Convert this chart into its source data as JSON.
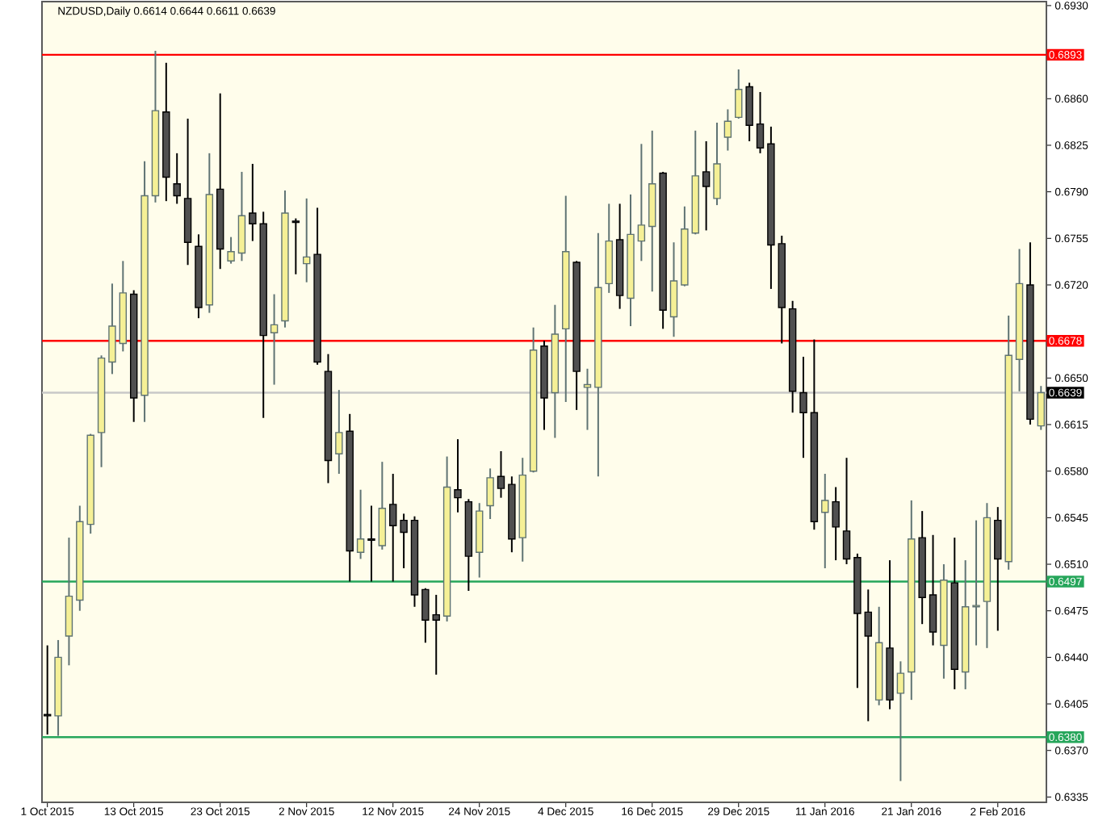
{
  "chart_data": {
    "type": "candlestick",
    "title": "NZDUSD,Daily 0.6614 0.6644 0.6611 0.6639",
    "categories": [
      "1 Oct 2015",
      null,
      null,
      null,
      null,
      null,
      null,
      null,
      "13 Oct 2015",
      null,
      null,
      null,
      null,
      null,
      null,
      null,
      "23 Oct 2015",
      null,
      null,
      null,
      null,
      null,
      null,
      null,
      "2 Nov 2015",
      null,
      null,
      null,
      null,
      null,
      null,
      null,
      "12 Nov 2015",
      null,
      null,
      null,
      null,
      null,
      null,
      null,
      "24 Nov 2015",
      null,
      null,
      null,
      null,
      null,
      null,
      null,
      "4 Dec 2015",
      null,
      null,
      null,
      null,
      null,
      null,
      null,
      "16 Dec 2015",
      null,
      null,
      null,
      null,
      null,
      null,
      null,
      "29 Dec 2015",
      null,
      null,
      null,
      null,
      null,
      null,
      null,
      "11 Jan 2016",
      null,
      null,
      null,
      null,
      null,
      null,
      null,
      "21 Jan 2016",
      null,
      null,
      null,
      null,
      null,
      null,
      null,
      "2 Feb 2016",
      null,
      null,
      null,
      null
    ],
    "ohlc": [
      [
        0.6397,
        0.6449,
        0.6382,
        0.6396
      ],
      [
        0.6396,
        0.6453,
        0.6381,
        0.644
      ],
      [
        0.6456,
        0.653,
        0.6434,
        0.6486
      ],
      [
        0.6483,
        0.6554,
        0.6475,
        0.6542
      ],
      [
        0.654,
        0.6608,
        0.6533,
        0.6607
      ],
      [
        0.6609,
        0.6667,
        0.6583,
        0.6665
      ],
      [
        0.6662,
        0.6721,
        0.6653,
        0.6689
      ],
      [
        0.6676,
        0.6738,
        0.667,
        0.6714
      ],
      [
        0.6713,
        0.6716,
        0.6617,
        0.6635
      ],
      [
        0.6637,
        0.6813,
        0.6617,
        0.6787
      ],
      [
        0.6787,
        0.6896,
        0.6782,
        0.6851
      ],
      [
        0.685,
        0.6887,
        0.6783,
        0.6801
      ],
      [
        0.6796,
        0.6819,
        0.6781,
        0.6787
      ],
      [
        0.6785,
        0.6845,
        0.6735,
        0.6752
      ],
      [
        0.6749,
        0.6758,
        0.6695,
        0.6703
      ],
      [
        0.6705,
        0.6819,
        0.6699,
        0.6788
      ],
      [
        0.6792,
        0.6864,
        0.6732,
        0.6747
      ],
      [
        0.6738,
        0.6756,
        0.6736,
        0.6745
      ],
      [
        0.6744,
        0.6805,
        0.6738,
        0.6772
      ],
      [
        0.6774,
        0.6811,
        0.6753,
        0.6766
      ],
      [
        0.6766,
        0.6775,
        0.662,
        0.6682
      ],
      [
        0.6684,
        0.6713,
        0.6645,
        0.669
      ],
      [
        0.6693,
        0.6791,
        0.6688,
        0.6774
      ],
      [
        0.6768,
        0.677,
        0.6728,
        0.6767
      ],
      [
        0.6736,
        0.6785,
        0.6722,
        0.6741
      ],
      [
        0.6743,
        0.6778,
        0.666,
        0.6662
      ],
      [
        0.6655,
        0.6668,
        0.6571,
        0.6588
      ],
      [
        0.6593,
        0.6641,
        0.6578,
        0.6609
      ],
      [
        0.661,
        0.6623,
        0.6497,
        0.652
      ],
      [
        0.6519,
        0.6566,
        0.6514,
        0.6529
      ],
      [
        0.6529,
        0.6554,
        0.6497,
        0.6528
      ],
      [
        0.6524,
        0.6587,
        0.6521,
        0.6552
      ],
      [
        0.6555,
        0.6578,
        0.6497,
        0.6539
      ],
      [
        0.6543,
        0.6548,
        0.6507,
        0.6534
      ],
      [
        0.6543,
        0.6546,
        0.6478,
        0.6487
      ],
      [
        0.6491,
        0.6492,
        0.6451,
        0.6468
      ],
      [
        0.6472,
        0.6487,
        0.6427,
        0.6468
      ],
      [
        0.6471,
        0.6591,
        0.6467,
        0.6568
      ],
      [
        0.6566,
        0.6604,
        0.6549,
        0.656
      ],
      [
        0.6557,
        0.6559,
        0.649,
        0.6516
      ],
      [
        0.6519,
        0.6556,
        0.65,
        0.655
      ],
      [
        0.6554,
        0.6582,
        0.6544,
        0.6575
      ],
      [
        0.6576,
        0.6595,
        0.656,
        0.6567
      ],
      [
        0.657,
        0.6576,
        0.6519,
        0.6529
      ],
      [
        0.653,
        0.659,
        0.6512,
        0.6577
      ],
      [
        0.658,
        0.6688,
        0.6579,
        0.6671
      ],
      [
        0.6674,
        0.6678,
        0.6611,
        0.6635
      ],
      [
        0.6639,
        0.6705,
        0.6605,
        0.6683
      ],
      [
        0.6687,
        0.6787,
        0.6632,
        0.6745
      ],
      [
        0.6737,
        0.6738,
        0.6626,
        0.6655
      ],
      [
        0.6643,
        0.6657,
        0.6611,
        0.6645
      ],
      [
        0.6643,
        0.6759,
        0.6576,
        0.6718
      ],
      [
        0.6721,
        0.6781,
        0.6714,
        0.6753
      ],
      [
        0.6754,
        0.6781,
        0.6702,
        0.6712
      ],
      [
        0.671,
        0.6788,
        0.6689,
        0.6758
      ],
      [
        0.6753,
        0.6826,
        0.6738,
        0.6765
      ],
      [
        0.6764,
        0.6836,
        0.6715,
        0.6796
      ],
      [
        0.6804,
        0.6805,
        0.6687,
        0.6701
      ],
      [
        0.6696,
        0.6752,
        0.6681,
        0.6723
      ],
      [
        0.672,
        0.6779,
        0.6719,
        0.6762
      ],
      [
        0.6759,
        0.6836,
        0.6758,
        0.6802
      ],
      [
        0.6805,
        0.6828,
        0.6761,
        0.6794
      ],
      [
        0.6785,
        0.6842,
        0.678,
        0.6811
      ],
      [
        0.6831,
        0.6852,
        0.6821,
        0.6843
      ],
      [
        0.6846,
        0.6882,
        0.6845,
        0.6867
      ],
      [
        0.6869,
        0.6872,
        0.6828,
        0.684
      ],
      [
        0.6841,
        0.6865,
        0.6819,
        0.6823
      ],
      [
        0.6826,
        0.6839,
        0.6717,
        0.675
      ],
      [
        0.6751,
        0.6757,
        0.6676,
        0.6703
      ],
      [
        0.6702,
        0.6708,
        0.6624,
        0.664
      ],
      [
        0.6639,
        0.6666,
        0.659,
        0.6624
      ],
      [
        0.6624,
        0.6679,
        0.6536,
        0.6542
      ],
      [
        0.6549,
        0.6578,
        0.6507,
        0.6558
      ],
      [
        0.6557,
        0.6568,
        0.6513,
        0.6538
      ],
      [
        0.6535,
        0.659,
        0.651,
        0.6514
      ],
      [
        0.6515,
        0.6518,
        0.6417,
        0.6473
      ],
      [
        0.6474,
        0.6491,
        0.6392,
        0.6456
      ],
      [
        0.6408,
        0.6478,
        0.6404,
        0.6451
      ],
      [
        0.6447,
        0.6513,
        0.6401,
        0.6408
      ],
      [
        0.6413,
        0.6437,
        0.6347,
        0.6428
      ],
      [
        0.6429,
        0.6558,
        0.6408,
        0.6529
      ],
      [
        0.653,
        0.655,
        0.6465,
        0.6485
      ],
      [
        0.6487,
        0.6532,
        0.6449,
        0.6459
      ],
      [
        0.6449,
        0.651,
        0.6424,
        0.6498
      ],
      [
        0.6496,
        0.653,
        0.6416,
        0.6431
      ],
      [
        0.6429,
        0.6513,
        0.6416,
        0.6478
      ],
      [
        0.6478,
        0.6543,
        0.6449,
        0.6479
      ],
      [
        0.6482,
        0.6556,
        0.6447,
        0.6545
      ],
      [
        0.6543,
        0.6553,
        0.646,
        0.6514
      ],
      [
        0.6512,
        0.6697,
        0.6506,
        0.6667
      ],
      [
        0.6664,
        0.6747,
        0.664,
        0.6721
      ],
      [
        0.672,
        0.6752,
        0.6615,
        0.6619
      ],
      [
        0.6614,
        0.6644,
        0.6611,
        0.6639
      ]
    ],
    "ylim": [
      0.6331,
      0.6933
    ],
    "yticks": [
      0.6335,
      {
        "value": 0.637,
        "label": "0.6370"
      },
      0.6405,
      {
        "value": 0.644,
        "label": "0.6440"
      },
      0.6475,
      {
        "value": 0.651,
        "label": "0.6510"
      },
      0.6545,
      {
        "value": 0.658,
        "label": "0.6580"
      },
      0.6615,
      {
        "value": 0.665,
        "label": "0.6650"
      },
      {
        "value": 0.672,
        "label": "0.6720"
      },
      0.6755,
      {
        "value": 0.679,
        "label": "0.6790"
      },
      0.6825,
      {
        "value": 0.686,
        "label": "0.6860"
      },
      {
        "value": 0.693,
        "label": "0.6930"
      }
    ],
    "ref_lines": [
      {
        "axis": "y",
        "value": 0.6893,
        "label": "0.6893",
        "color": "#ff0000"
      },
      {
        "axis": "y",
        "value": 0.6678,
        "label": "0.6678",
        "color": "#ff0000"
      },
      {
        "axis": "y",
        "value": 0.6497,
        "label": "0.6497",
        "color": "#26a65b"
      },
      {
        "axis": "y",
        "value": 0.638,
        "label": "0.6380",
        "color": "#26a65b"
      },
      {
        "axis": "y",
        "value": 0.6639,
        "label": "0.6639",
        "color": "#c8c8c8"
      }
    ],
    "grid": false
  }
}
